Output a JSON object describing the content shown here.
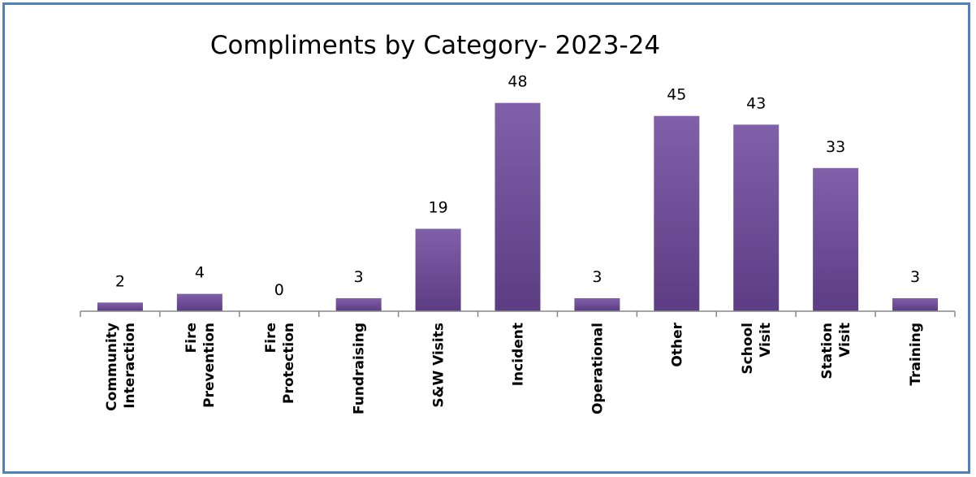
{
  "chart_data": {
    "type": "bar",
    "title": "Compliments by Category- 2023-24",
    "xlabel": "",
    "ylabel": "",
    "categories": [
      [
        "Community",
        "Interaction"
      ],
      [
        "Fire",
        "Prevention"
      ],
      [
        "Fire",
        "Protection"
      ],
      [
        "Fundraising"
      ],
      [
        "S&W Visits"
      ],
      [
        "Incident"
      ],
      [
        "Operational"
      ],
      [
        "Other"
      ],
      [
        "School",
        "Visit"
      ],
      [
        "Station",
        "Visit"
      ],
      [
        "Training"
      ]
    ],
    "values": [
      2,
      4,
      0,
      3,
      19,
      48,
      3,
      45,
      43,
      33,
      3
    ],
    "ylim": [
      0,
      50
    ],
    "grid": false,
    "legend": "none",
    "data_labels": true,
    "colors": {
      "bar_top": "#8060a8",
      "bar_bottom": "#5c3d84",
      "frame": "#4f81bd",
      "axis": "#888888"
    }
  }
}
